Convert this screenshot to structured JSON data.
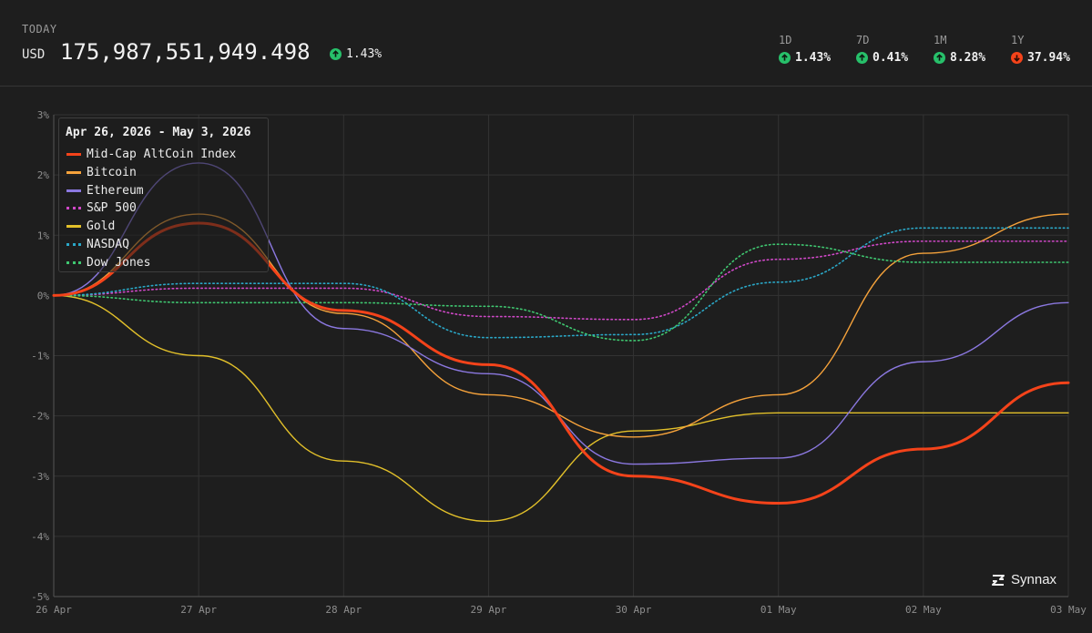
{
  "header": {
    "today_label": "TODAY",
    "currency": "USD",
    "total_value": "175,987,551,949.498",
    "change": {
      "value": "1.43%",
      "direction": "up"
    },
    "periods": [
      {
        "label": "1D",
        "value": "1.43%",
        "direction": "up"
      },
      {
        "label": "7D",
        "value": "0.41%",
        "direction": "up"
      },
      {
        "label": "1M",
        "value": "8.28%",
        "direction": "up"
      },
      {
        "label": "1Y",
        "value": "37.94%",
        "direction": "down"
      }
    ]
  },
  "legend": {
    "title": "Apr 26, 2026 - May 3, 2026"
  },
  "logo_text": "Synnax",
  "colors": {
    "background": "#1e1e1e",
    "grid": "#333333",
    "up": "#27c06a",
    "down": "#f4431a",
    "axis_text": "#8e8e8e"
  },
  "chart_data": {
    "type": "line",
    "x": [
      "26 Apr",
      "27 Apr",
      "28 Apr",
      "29 Apr",
      "30 Apr",
      "01 May",
      "02 May",
      "03 May"
    ],
    "y_ticks": [
      "3%",
      "2%",
      "1%",
      "0%",
      "-1%",
      "-2%",
      "-3%",
      "-4%",
      "-5%"
    ],
    "ylim": [
      -5,
      3
    ],
    "grid": true,
    "legend_placement": "top-left",
    "series": [
      {
        "name": "Mid-Cap AltCoin Index",
        "color": "#f4431a",
        "style": "solid",
        "values": [
          0,
          1.2,
          -0.25,
          -1.15,
          -3.0,
          -3.45,
          -2.55,
          -1.45
        ]
      },
      {
        "name": "Bitcoin",
        "color": "#f5a23b",
        "style": "solid",
        "values": [
          0,
          1.35,
          -0.3,
          -1.65,
          -2.35,
          -1.65,
          0.7,
          1.35
        ]
      },
      {
        "name": "Ethereum",
        "color": "#8b78e0",
        "style": "solid",
        "values": [
          0,
          2.2,
          -0.55,
          -1.3,
          -2.8,
          -2.7,
          -1.1,
          -0.12
        ]
      },
      {
        "name": "S&P 500",
        "color": "#d048c8",
        "style": "dotted",
        "values": [
          0,
          0.12,
          0.12,
          -0.35,
          -0.4,
          0.6,
          0.9,
          0.9
        ]
      },
      {
        "name": "Gold",
        "color": "#e2c02a",
        "style": "solid",
        "values": [
          0,
          -1.0,
          -2.75,
          -3.75,
          -2.25,
          -1.95,
          -1.95,
          -1.95
        ]
      },
      {
        "name": "NASDAQ",
        "color": "#2aa8c8",
        "style": "dotted",
        "values": [
          0,
          0.2,
          0.2,
          -0.7,
          -0.65,
          0.22,
          1.12,
          1.12
        ]
      },
      {
        "name": "Dow Jones",
        "color": "#3fc770",
        "style": "dotted",
        "values": [
          0,
          -0.12,
          -0.12,
          -0.18,
          -0.75,
          0.85,
          0.55,
          0.55
        ]
      }
    ]
  }
}
